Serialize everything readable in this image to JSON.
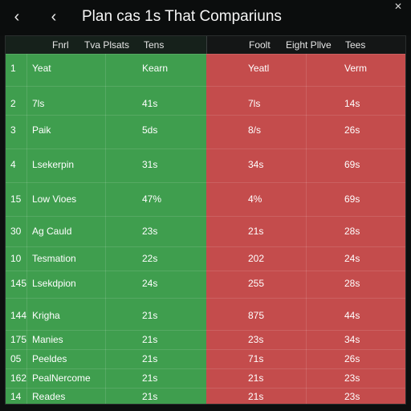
{
  "window": {
    "title": "Plan cas 1s That Compariuns",
    "back_glyph": "‹",
    "prev_glyph": "‹",
    "close_glyph": "✕"
  },
  "headers": {
    "left": [
      "Fnrl",
      "Tva Plsats",
      "Tens"
    ],
    "right": [
      "Foolt",
      "Eight Pllve",
      "Tees"
    ]
  },
  "colors": {
    "left_panel": "#3f9e4e",
    "right_panel": "#c44c4c",
    "background": "#0d0f0f"
  },
  "rows": [
    {
      "num": "1",
      "name": "Yeat",
      "v1": "Kearn",
      "v2": "Yeatl",
      "v3": "Verm"
    },
    {
      "num": "2",
      "name": "7ls",
      "v1": "41s",
      "v2": "7ls",
      "v3": "14s"
    },
    {
      "num": "3",
      "name": "Paik",
      "v1": "5ds",
      "v2": "8/s",
      "v3": "26s"
    },
    {
      "num": "4",
      "name": "Lsekerpin",
      "v1": "31s",
      "v2": "34s",
      "v3": "69s"
    },
    {
      "num": "15",
      "name": "Low Vioes",
      "v1": "47%",
      "v2": "4%",
      "v3": "69s"
    },
    {
      "num": "30",
      "name": "Ag Cauld",
      "v1": "23s",
      "v2": "21s",
      "v3": "28s"
    },
    {
      "num": "10",
      "name": "Tesmation",
      "v1": "22s",
      "v2": "202",
      "v3": "24s"
    },
    {
      "num": "145",
      "name": "Lsekdpion",
      "v1": "24s",
      "v2": "255",
      "v3": "28s"
    },
    {
      "num": "144",
      "name": "Krigha",
      "v1": "21s",
      "v2": "875",
      "v3": "44s"
    },
    {
      "num": "175",
      "name": "Manies",
      "v1": "21s",
      "v2": "23s",
      "v3": "34s"
    },
    {
      "num": "05",
      "name": "Peeldes",
      "v1": "21s",
      "v2": "71s",
      "v3": "26s"
    },
    {
      "num": "162",
      "name": "PealNercome",
      "v1": "21s",
      "v2": "21s",
      "v3": "23s"
    },
    {
      "num": "14",
      "name": "Reades",
      "v1": "21s",
      "v2": "21s",
      "v3": "23s"
    }
  ]
}
